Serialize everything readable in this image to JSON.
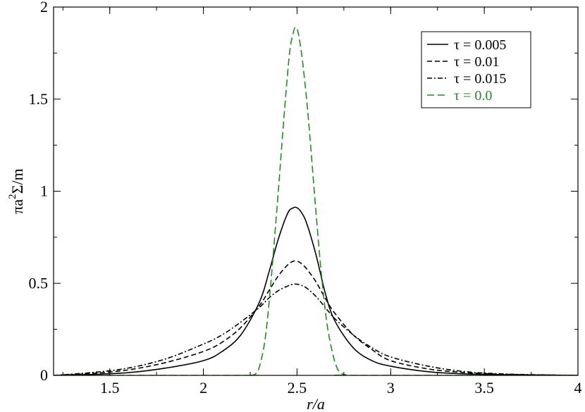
{
  "chart_data": {
    "type": "line",
    "title": "",
    "xlabel": "r/a",
    "ylabel_parts": {
      "pre": "πa",
      "sup": "2",
      "post": "Σ/m"
    },
    "xlim": [
      1.2,
      4.0
    ],
    "ylim": [
      0,
      2.0
    ],
    "grid": false,
    "legend_position": "top-right",
    "xticks": [
      1.5,
      2,
      2.5,
      3,
      3.5,
      4
    ],
    "xtick_labels": [
      "1.5",
      "2",
      "2.5",
      "3",
      "3.5",
      "4"
    ],
    "yticks": [
      0,
      0.5,
      1,
      1.5,
      2
    ],
    "ytick_labels": [
      "0",
      "0.5",
      "1",
      "1.5",
      "2"
    ],
    "series": [
      {
        "name": "τ = 0.005",
        "color": "#000000",
        "dash": "solid",
        "x": [
          1.2,
          1.4,
          1.6,
          1.8,
          2.0,
          2.1,
          2.2,
          2.3,
          2.35,
          2.4,
          2.45,
          2.48,
          2.5,
          2.52,
          2.55,
          2.6,
          2.65,
          2.7,
          2.8,
          2.9,
          3.0,
          3.2,
          3.4,
          3.6,
          3.8,
          4.0
        ],
        "y": [
          0.0,
          0.005,
          0.015,
          0.04,
          0.08,
          0.13,
          0.22,
          0.4,
          0.56,
          0.74,
          0.88,
          0.91,
          0.91,
          0.89,
          0.83,
          0.66,
          0.45,
          0.3,
          0.15,
          0.08,
          0.05,
          0.02,
          0.008,
          0.004,
          0.002,
          0.0
        ]
      },
      {
        "name": "τ = 0.01",
        "color": "#000000",
        "dash": "dashed",
        "x": [
          1.2,
          1.4,
          1.6,
          1.8,
          2.0,
          2.1,
          2.2,
          2.3,
          2.35,
          2.4,
          2.45,
          2.48,
          2.5,
          2.52,
          2.55,
          2.6,
          2.65,
          2.7,
          2.8,
          2.9,
          3.0,
          3.2,
          3.4,
          3.6,
          3.8,
          4.0
        ],
        "y": [
          0.0,
          0.01,
          0.03,
          0.07,
          0.13,
          0.18,
          0.26,
          0.38,
          0.46,
          0.54,
          0.6,
          0.62,
          0.62,
          0.61,
          0.58,
          0.51,
          0.42,
          0.34,
          0.22,
          0.14,
          0.08,
          0.035,
          0.015,
          0.006,
          0.002,
          0.0
        ]
      },
      {
        "name": "τ = 0.015",
        "color": "#000000",
        "dash": "dashdot",
        "x": [
          1.2,
          1.4,
          1.6,
          1.8,
          2.0,
          2.1,
          2.2,
          2.3,
          2.35,
          2.4,
          2.45,
          2.48,
          2.5,
          2.52,
          2.55,
          2.6,
          2.65,
          2.7,
          2.8,
          2.9,
          3.0,
          3.2,
          3.4,
          3.6,
          3.8,
          4.0
        ],
        "y": [
          0.0,
          0.015,
          0.04,
          0.09,
          0.17,
          0.22,
          0.29,
          0.37,
          0.42,
          0.46,
          0.485,
          0.495,
          0.495,
          0.49,
          0.475,
          0.43,
          0.37,
          0.31,
          0.22,
          0.15,
          0.1,
          0.05,
          0.02,
          0.008,
          0.003,
          0.0
        ]
      },
      {
        "name": "τ = 0.0",
        "color": "#228b22",
        "dash": "longdash",
        "x": [
          1.2,
          2.2,
          2.25,
          2.28,
          2.3,
          2.33,
          2.36,
          2.4,
          2.43,
          2.46,
          2.48,
          2.49,
          2.5,
          2.51,
          2.53,
          2.56,
          2.6,
          2.63,
          2.66,
          2.69,
          2.71,
          2.73,
          2.76,
          2.8,
          4.0
        ],
        "y": [
          0.0,
          0.0,
          0.0,
          0.01,
          0.05,
          0.2,
          0.5,
          1.0,
          1.4,
          1.75,
          1.86,
          1.89,
          1.88,
          1.84,
          1.7,
          1.4,
          0.9,
          0.55,
          0.28,
          0.12,
          0.05,
          0.015,
          0.003,
          0.0,
          0.0
        ]
      }
    ]
  }
}
